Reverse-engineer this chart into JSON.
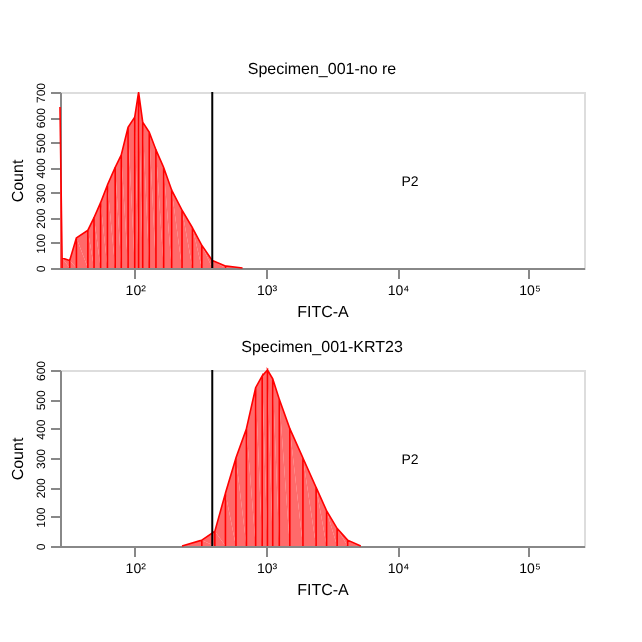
{
  "chart_data": [
    {
      "type": "area",
      "title": "Specimen_001-no re",
      "xlabel": "FITC-A",
      "ylabel": "Count",
      "log": "x",
      "x": [
        27,
        28,
        32,
        36,
        44,
        49,
        55,
        62,
        71,
        79,
        89,
        100,
        107,
        115,
        129,
        145,
        166,
        191,
        229,
        275,
        324,
        389,
        490,
        661
      ],
      "series": [
        {
          "color": "#ff5a5a",
          "values": [
            640,
            40,
            30,
            120,
            150,
            200,
            260,
            330,
            400,
            450,
            560,
            600,
            700,
            580,
            540,
            470,
            400,
            310,
            230,
            160,
            90,
            30,
            8,
            0
          ]
        }
      ],
      "xlim": [
        27,
        262144
      ],
      "ylim": [
        0,
        700
      ],
      "yticks": [
        0,
        100,
        200,
        300,
        400,
        500,
        600,
        700
      ],
      "xticks": [
        {
          "value": 100,
          "label": "10²"
        },
        {
          "value": 1000,
          "label": "10³"
        },
        {
          "value": 10000,
          "label": "10⁴"
        },
        {
          "value": 100000,
          "label": "10⁵"
        }
      ],
      "ref_lines": [
        {
          "axis": "x",
          "value": 389
        }
      ],
      "annotations": [
        "P2"
      ],
      "grid": false
    },
    {
      "type": "area",
      "title": "Specimen_001-KRT23",
      "xlabel": "FITC-A",
      "ylabel": "Count",
      "log": "x",
      "x": [
        229,
        324,
        407,
        490,
        589,
        708,
        832,
        933,
        1023,
        1122,
        1259,
        1514,
        1905,
        2399,
        2884,
        3467,
        4169,
        5248
      ],
      "series": [
        {
          "color": "#ff5a5a",
          "values": [
            0,
            20,
            50,
            180,
            300,
            400,
            540,
            580,
            600,
            570,
            500,
            400,
            300,
            200,
            120,
            60,
            20,
            0
          ]
        }
      ],
      "xlim": [
        27,
        262144
      ],
      "ylim": [
        0,
        600
      ],
      "yticks": [
        0,
        100,
        200,
        300,
        400,
        500,
        600
      ],
      "xticks": [
        {
          "value": 100,
          "label": "10²"
        },
        {
          "value": 1000,
          "label": "10³"
        },
        {
          "value": 10000,
          "label": "10⁴"
        },
        {
          "value": 100000,
          "label": "10⁵"
        }
      ],
      "ref_lines": [
        {
          "axis": "x",
          "value": 389
        }
      ],
      "annotations": [
        "P2"
      ],
      "grid": false
    }
  ]
}
